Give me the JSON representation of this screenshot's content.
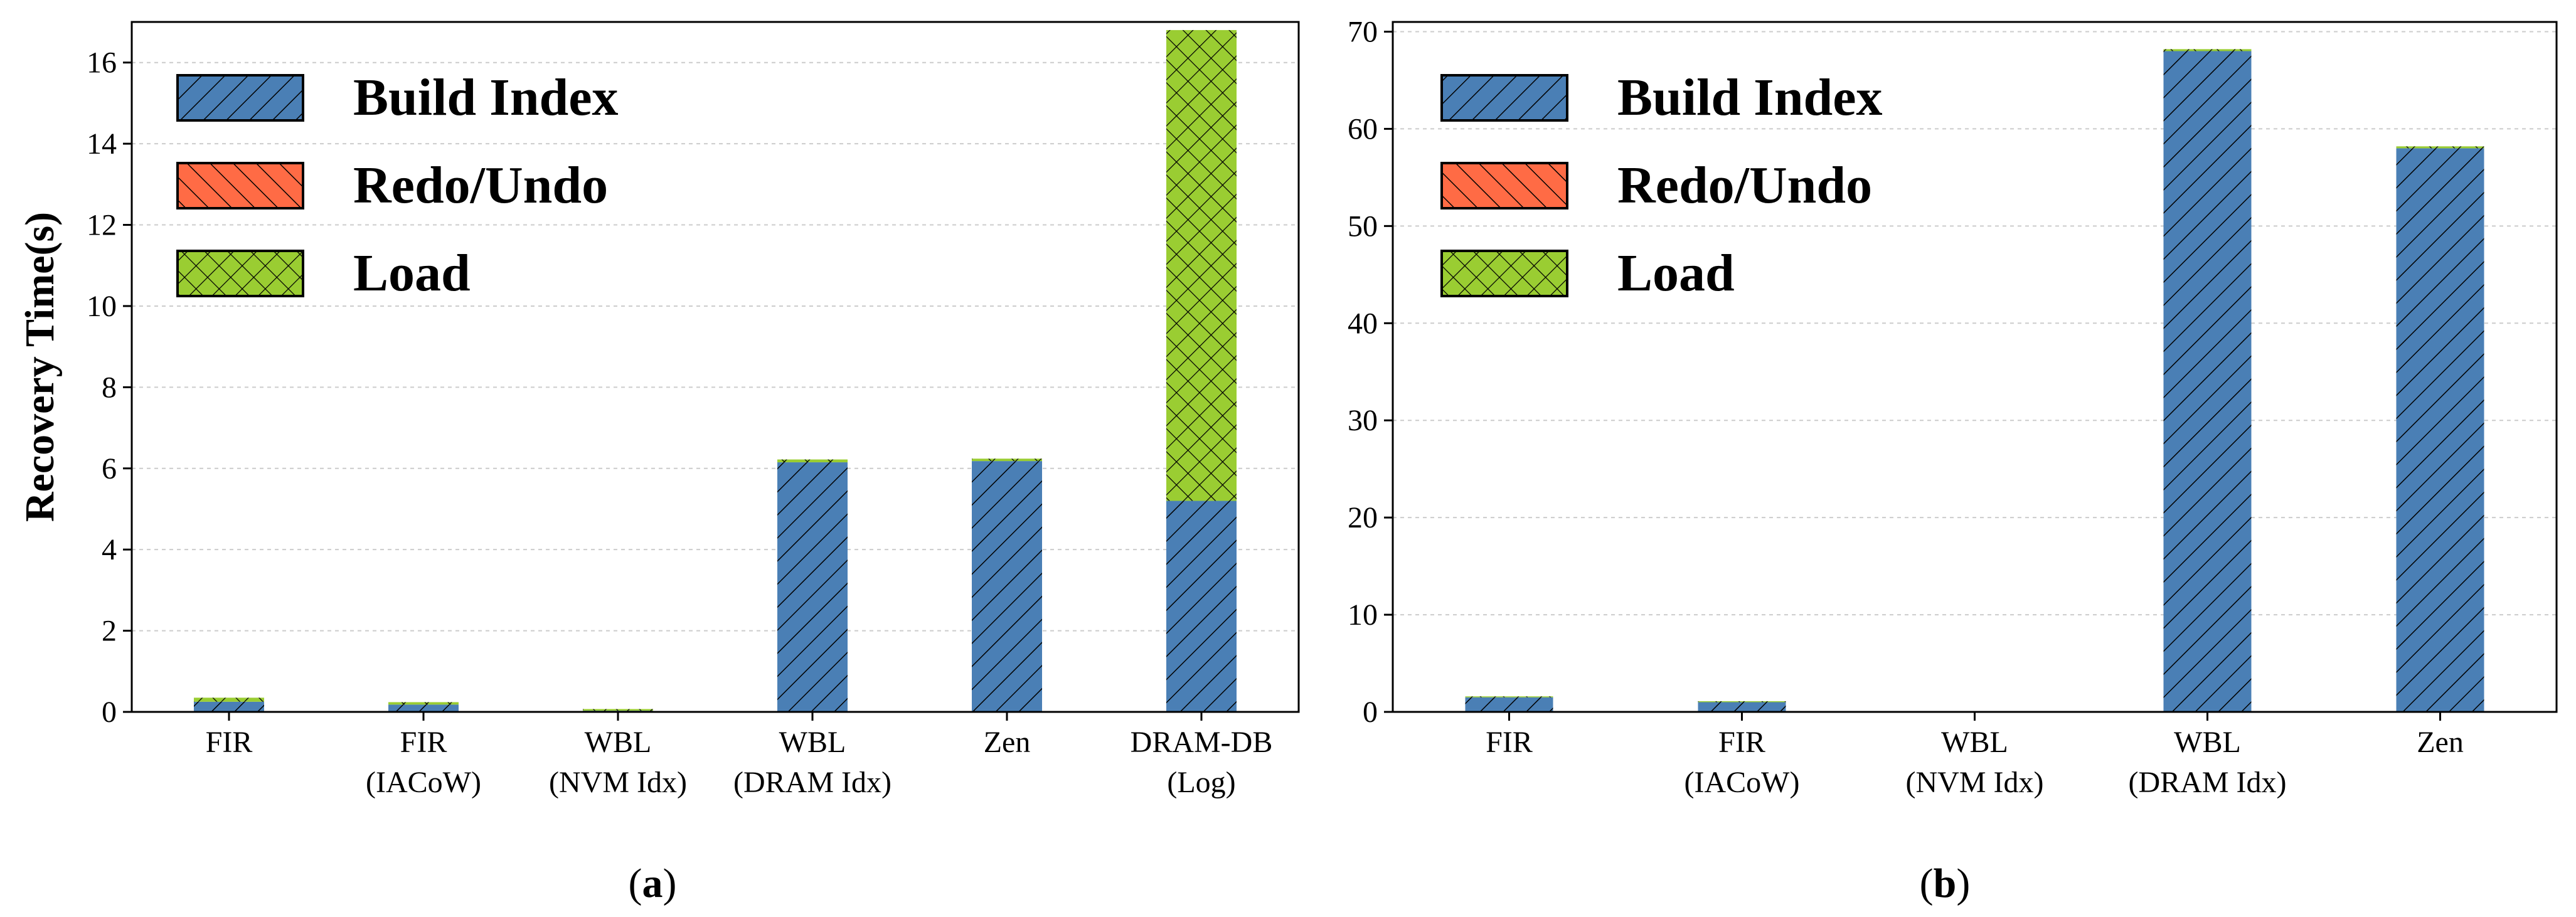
{
  "colors": {
    "build_index": "#4a7fb5",
    "redo_undo": "#ff6b45",
    "load": "#9acd32",
    "grid": "#cccccc",
    "frame": "#000000"
  },
  "legend": {
    "build_index": "Build Index",
    "redo_undo": "Redo/Undo",
    "load": "Load"
  },
  "chart_data": [
    {
      "type": "bar",
      "stacked": true,
      "panel_label": "a",
      "ylabel": "Recovery Time(s)",
      "ylim": [
        0,
        17
      ],
      "yticks": [
        0,
        2,
        4,
        6,
        8,
        10,
        12,
        14,
        16
      ],
      "grid": "y",
      "legend_position": "top-left",
      "categories": [
        [
          "FIR"
        ],
        [
          "FIR",
          "(IACoW)"
        ],
        [
          "WBL",
          "(NVM Idx)"
        ],
        [
          "WBL",
          "(DRAM Idx)"
        ],
        [
          "Zen"
        ],
        [
          "DRAM-DB",
          "(Log)"
        ]
      ],
      "series": [
        {
          "name": "Build Index",
          "key": "build_index",
          "values": [
            0.25,
            0.18,
            0.03,
            6.15,
            6.18,
            5.2
          ]
        },
        {
          "name": "Redo/Undo",
          "key": "redo_undo",
          "values": [
            0.0,
            0.0,
            0.0,
            0.0,
            0.0,
            0.0
          ]
        },
        {
          "name": "Load",
          "key": "load",
          "values": [
            0.1,
            0.06,
            0.04,
            0.07,
            0.06,
            11.6
          ]
        }
      ]
    },
    {
      "type": "bar",
      "stacked": true,
      "panel_label": "b",
      "ylabel": "",
      "ylim": [
        0,
        71
      ],
      "yticks": [
        0,
        10,
        20,
        30,
        40,
        50,
        60,
        70
      ],
      "grid": "y",
      "legend_position": "top-left",
      "categories": [
        [
          "FIR"
        ],
        [
          "FIR",
          "(IACoW)"
        ],
        [
          "WBL",
          "(NVM Idx)"
        ],
        [
          "WBL",
          "(DRAM Idx)"
        ],
        [
          "Zen"
        ]
      ],
      "series": [
        {
          "name": "Build Index",
          "key": "build_index",
          "values": [
            1.5,
            1.0,
            0.0,
            68.0,
            58.0
          ]
        },
        {
          "name": "Redo/Undo",
          "key": "redo_undo",
          "values": [
            0.0,
            0.0,
            0.0,
            0.0,
            0.0
          ]
        },
        {
          "name": "Load",
          "key": "load",
          "values": [
            0.1,
            0.1,
            0.0,
            0.2,
            0.2
          ]
        }
      ]
    }
  ]
}
